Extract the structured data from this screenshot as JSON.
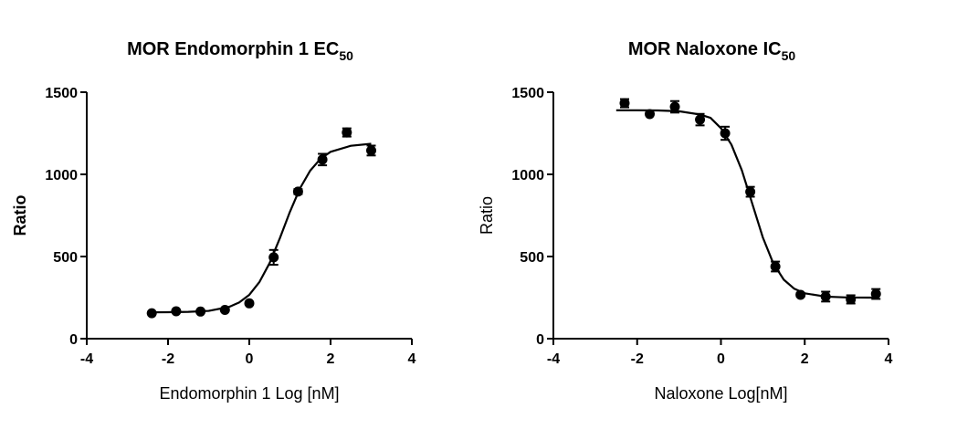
{
  "chart_data": [
    {
      "type": "scatter",
      "title": "MOR Endomorphin 1 EC",
      "title_subscript": "50",
      "xlabel": "Endomorphin 1 Log [nM]",
      "ylabel": "Ratio",
      "ylabel_bold": true,
      "xlim": [
        -4,
        4
      ],
      "xticks": [
        -4,
        -2,
        0,
        2,
        4
      ],
      "ylim": [
        0,
        1500
      ],
      "yticks": [
        0,
        500,
        1000,
        1500
      ],
      "color": "#000000",
      "points": {
        "x": [
          -2.4,
          -1.8,
          -1.2,
          -0.6,
          0,
          0.6,
          1.2,
          1.8,
          2.4,
          3.0
        ],
        "values": [
          155,
          167,
          165,
          175,
          215,
          495,
          895,
          1090,
          1255,
          1145
        ],
        "errors": [
          0,
          0,
          0,
          0,
          10,
          45,
          15,
          35,
          25,
          30
        ]
      },
      "curve": {
        "x": [
          -2.5,
          -2,
          -1.5,
          -1,
          -0.5,
          -0.25,
          0,
          0.25,
          0.5,
          0.75,
          1,
          1.25,
          1.5,
          1.75,
          2,
          2.5,
          3
        ],
        "values": [
          160,
          161,
          163,
          169,
          193,
          220,
          267,
          345,
          460,
          610,
          772,
          916,
          1023,
          1094,
          1137,
          1174,
          1186
        ]
      }
    },
    {
      "type": "scatter",
      "title": "MOR Naloxone  IC",
      "title_subscript": "50",
      "xlabel": "Naloxone Log[nM]",
      "ylabel": "Ratio",
      "ylabel_bold": false,
      "xlim": [
        -4,
        4
      ],
      "xticks": [
        -4,
        -2,
        0,
        2,
        4
      ],
      "ylim": [
        0,
        1500
      ],
      "yticks": [
        0,
        500,
        1000,
        1500
      ],
      "color": "#000000",
      "points": {
        "x": [
          -2.3,
          -1.7,
          -1.1,
          -0.5,
          0.1,
          0.7,
          1.3,
          1.9,
          2.5,
          3.1,
          3.7
        ],
        "values": [
          1433,
          1367,
          1411,
          1333,
          1250,
          894,
          439,
          267,
          256,
          239,
          272
        ],
        "errors": [
          25,
          0,
          35,
          35,
          40,
          30,
          30,
          10,
          30,
          25,
          30
        ]
      },
      "curve": {
        "x": [
          -2.5,
          -2,
          -1.5,
          -1,
          -0.5,
          -0.25,
          0,
          0.25,
          0.5,
          0.75,
          1,
          1.25,
          1.5,
          1.75,
          2,
          2.5,
          3,
          3.5,
          3.7
        ],
        "values": [
          1390,
          1390,
          1389,
          1384,
          1364,
          1344,
          1281,
          1181,
          1024,
          820,
          616,
          458,
          359,
          304,
          276,
          256,
          251,
          250,
          250
        ]
      }
    }
  ]
}
